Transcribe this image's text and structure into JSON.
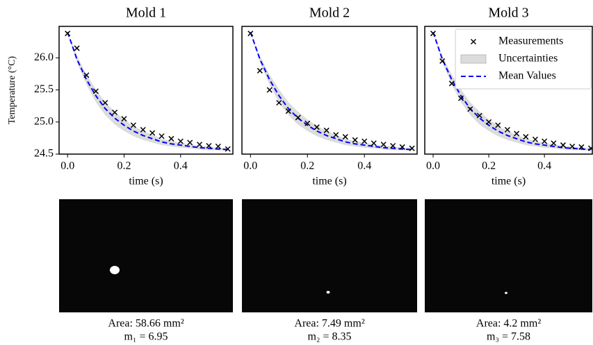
{
  "chart_data": [
    {
      "type": "line",
      "title": "Mold 1",
      "xlabel": "time (s)",
      "ylabel": "Temperature (°C)",
      "x": [
        0,
        0.033,
        0.067,
        0.1,
        0.133,
        0.167,
        0.2,
        0.233,
        0.267,
        0.3,
        0.333,
        0.367,
        0.4,
        0.433,
        0.467,
        0.5,
        0.533,
        0.567
      ],
      "series": [
        {
          "kind": "band",
          "color": "#dcdcdc",
          "lower": [
            26.4,
            25.93,
            25.58,
            25.31,
            25.11,
            24.96,
            24.86,
            24.78,
            24.72,
            24.68,
            24.64,
            24.62,
            24.6,
            24.59,
            24.57,
            24.56,
            24.56,
            24.55
          ],
          "upper": [
            26.4,
            26.03,
            25.74,
            25.51,
            25.31,
            25.16,
            25.04,
            24.94,
            24.86,
            24.8,
            24.74,
            24.7,
            24.68,
            24.65,
            24.63,
            24.62,
            24.6,
            24.59
          ]
        },
        {
          "kind": "line",
          "color": "#0000ff",
          "values": [
            26.4,
            25.98,
            25.66,
            25.41,
            25.21,
            25.06,
            24.95,
            24.86,
            24.79,
            24.74,
            24.69,
            24.66,
            24.64,
            24.62,
            24.6,
            24.59,
            24.58,
            24.57
          ]
        },
        {
          "kind": "scatter",
          "color": "#000000",
          "values": [
            26.38,
            26.15,
            25.73,
            25.48,
            25.3,
            25.15,
            25.05,
            24.95,
            24.88,
            24.83,
            24.78,
            24.74,
            24.7,
            24.68,
            24.65,
            24.63,
            24.62,
            24.58
          ]
        }
      ],
      "xlim": [
        -0.03,
        0.585
      ],
      "ylim": [
        24.5,
        26.49
      ],
      "xticks": [
        {
          "value": 0,
          "label": "0.0"
        },
        0.2,
        0.4
      ],
      "yticks": [
        24.5,
        {
          "value": 25,
          "label": "25.0"
        },
        25.5,
        {
          "value": 26,
          "label": "26.0"
        }
      ],
      "image": {
        "area": "Area: 58.66 mm²",
        "mass": "m₁ = 6.95"
      }
    },
    {
      "type": "line",
      "title": "Mold 2",
      "xlabel": "time (s)",
      "x": [
        0,
        0.033,
        0.067,
        0.1,
        0.133,
        0.167,
        0.2,
        0.233,
        0.267,
        0.3,
        0.333,
        0.367,
        0.4,
        0.433,
        0.467,
        0.5,
        0.533,
        0.567
      ],
      "series": [
        {
          "kind": "band",
          "color": "#dcdcdc",
          "lower": [
            26.4,
            25.93,
            25.58,
            25.31,
            25.11,
            24.96,
            24.86,
            24.78,
            24.72,
            24.68,
            24.64,
            24.62,
            24.6,
            24.59,
            24.57,
            24.56,
            24.56,
            24.55
          ],
          "upper": [
            26.4,
            26.03,
            25.74,
            25.51,
            25.31,
            25.16,
            25.04,
            24.94,
            24.86,
            24.8,
            24.74,
            24.7,
            24.68,
            24.65,
            24.63,
            24.62,
            24.6,
            24.59
          ]
        },
        {
          "kind": "line",
          "color": "#0000ff",
          "values": [
            26.4,
            25.98,
            25.66,
            25.41,
            25.21,
            25.06,
            24.95,
            24.86,
            24.79,
            24.74,
            24.69,
            24.66,
            24.64,
            24.62,
            24.6,
            24.59,
            24.58,
            24.57
          ]
        },
        {
          "kind": "scatter",
          "color": "#000000",
          "values": [
            26.38,
            25.8,
            25.5,
            25.3,
            25.17,
            25.07,
            24.98,
            24.92,
            24.87,
            24.8,
            24.77,
            24.72,
            24.7,
            24.67,
            24.65,
            24.63,
            24.61,
            24.59
          ]
        }
      ],
      "xlim": [
        -0.03,
        0.585
      ],
      "ylim": [
        24.5,
        26.49
      ],
      "xticks": [
        {
          "value": 0,
          "label": "0.0"
        },
        0.2,
        0.4
      ],
      "image": {
        "area": "Area: 7.49 mm²",
        "mass": "m₂ = 8.35"
      }
    },
    {
      "type": "line",
      "title": "Mold 3",
      "xlabel": "time (s)",
      "legend": "upper right",
      "x": [
        0,
        0.033,
        0.067,
        0.1,
        0.133,
        0.167,
        0.2,
        0.233,
        0.267,
        0.3,
        0.333,
        0.367,
        0.4,
        0.433,
        0.467,
        0.5,
        0.533,
        0.567
      ],
      "series": [
        {
          "kind": "band",
          "name": "Uncertainties",
          "color": "#dcdcdc",
          "lower": [
            26.4,
            25.93,
            25.58,
            25.31,
            25.11,
            24.96,
            24.86,
            24.78,
            24.72,
            24.68,
            24.64,
            24.62,
            24.6,
            24.59,
            24.57,
            24.56,
            24.56,
            24.55
          ],
          "upper": [
            26.4,
            26.03,
            25.74,
            25.51,
            25.31,
            25.16,
            25.04,
            24.94,
            24.86,
            24.8,
            24.74,
            24.7,
            24.68,
            24.65,
            24.63,
            24.62,
            24.6,
            24.59
          ]
        },
        {
          "kind": "line",
          "name": "Mean Values",
          "color": "#0000ff",
          "values": [
            26.4,
            25.98,
            25.66,
            25.41,
            25.21,
            25.06,
            24.95,
            24.86,
            24.79,
            24.74,
            24.69,
            24.66,
            24.64,
            24.62,
            24.6,
            24.59,
            24.58,
            24.57
          ]
        },
        {
          "kind": "scatter",
          "name": "Measurements",
          "color": "#000000",
          "values": [
            26.38,
            25.95,
            25.6,
            25.37,
            25.2,
            25.1,
            25.0,
            24.95,
            24.88,
            24.82,
            24.77,
            24.73,
            24.7,
            24.67,
            24.64,
            24.62,
            24.61,
            24.59
          ]
        }
      ],
      "xlim": [
        -0.03,
        0.572
      ],
      "ylim": [
        24.5,
        26.49
      ],
      "xticks": [
        {
          "value": 0,
          "label": "0.0"
        },
        0.2,
        0.4
      ],
      "image": {
        "area": "Area: 4.2 mm²",
        "mass": "m₃ = 7.58"
      }
    }
  ]
}
